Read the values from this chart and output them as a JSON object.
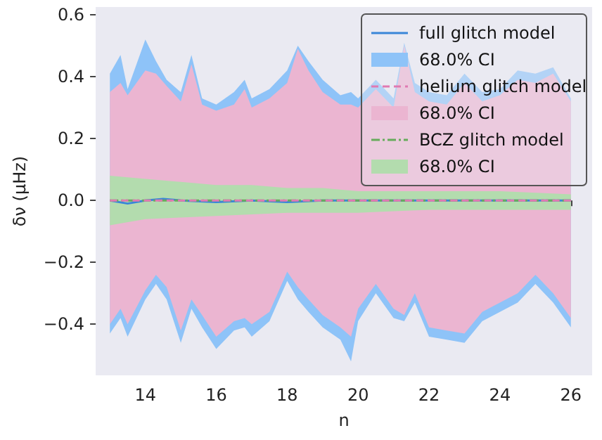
{
  "chart_data": {
    "type": "line",
    "xlabel": "n",
    "ylabel": "δν (μHz)",
    "xlim": [
      12.6,
      26.6
    ],
    "ylim": [
      -0.565,
      0.625
    ],
    "xticks": [
      14,
      16,
      18,
      20,
      22,
      24,
      26
    ],
    "yticks": [
      {
        "value": -0.4,
        "label": "−0.4"
      },
      {
        "value": -0.2,
        "label": "−0.2"
      },
      {
        "value": 0,
        "label": "0.0"
      },
      {
        "value": 0.2,
        "label": "0.2"
      },
      {
        "value": 0.4,
        "label": "0.4"
      },
      {
        "value": 0.6,
        "label": "0.6"
      }
    ],
    "grid": false,
    "legend": "top right",
    "marker": "none",
    "series": [
      {
        "name": "full glitch model",
        "type": "line",
        "color": "#3a86d8",
        "line_style": "solid",
        "x": [
          13,
          13.5,
          14,
          14.5,
          15,
          16,
          17,
          18,
          19,
          20,
          21,
          22,
          23,
          24,
          25,
          26
        ],
        "values": [
          0,
          -0.01,
          0,
          0.005,
          0,
          -0.005,
          0,
          -0.005,
          0,
          0,
          0,
          0,
          0,
          0,
          0,
          0
        ]
      },
      {
        "name": "68.0% CI",
        "type": "area",
        "color": "#8ec3f8",
        "x": [
          13,
          13.3,
          13.5,
          14,
          14.3,
          14.6,
          15,
          15.3,
          15.6,
          16,
          16.5,
          16.8,
          17,
          17.5,
          18,
          18.3,
          18.6,
          19,
          19.5,
          19.8,
          20,
          20.5,
          21,
          21.3,
          21.6,
          22,
          22.5,
          23,
          23.5,
          24,
          24.5,
          25,
          25.5,
          26
        ],
        "values": [
          null,
          null,
          null,
          null,
          null,
          null,
          null,
          null,
          null,
          null,
          null,
          null,
          null,
          null,
          null,
          null,
          null,
          null,
          null,
          null,
          null,
          null,
          null,
          null,
          null,
          null,
          null,
          null,
          null,
          null,
          null,
          null,
          null,
          null
        ],
        "upper": [
          0.41,
          0.47,
          0.36,
          0.52,
          0.45,
          0.39,
          0.35,
          0.47,
          0.33,
          0.31,
          0.35,
          0.39,
          0.33,
          0.36,
          0.42,
          0.5,
          0.45,
          0.39,
          0.34,
          0.35,
          0.33,
          0.39,
          0.33,
          0.51,
          0.38,
          0.35,
          0.34,
          0.41,
          0.35,
          0.36,
          0.42,
          0.41,
          0.43,
          0.33
        ],
        "lower": [
          -0.43,
          -0.38,
          -0.44,
          -0.32,
          -0.27,
          -0.32,
          -0.46,
          -0.35,
          -0.41,
          -0.48,
          -0.42,
          -0.41,
          -0.44,
          -0.39,
          -0.26,
          -0.32,
          -0.36,
          -0.41,
          -0.45,
          -0.52,
          -0.39,
          -0.3,
          -0.38,
          -0.39,
          -0.33,
          -0.44,
          -0.45,
          -0.46,
          -0.39,
          -0.36,
          -0.33,
          -0.27,
          -0.33,
          -0.41
        ]
      },
      {
        "name": "helium glitch model",
        "type": "line",
        "color": "#e07ab2",
        "line_style": "dashed",
        "x": [
          13,
          14,
          15,
          16,
          17,
          18,
          19,
          20,
          21,
          22,
          23,
          24,
          25,
          26
        ],
        "values": [
          0,
          0,
          0,
          0,
          0,
          0,
          0,
          0,
          0,
          0,
          0,
          0,
          0,
          0
        ]
      },
      {
        "name": "68.0% CI",
        "type": "area",
        "color": "#ebb5d1",
        "x": [
          13,
          13.3,
          13.5,
          14,
          14.3,
          14.6,
          15,
          15.3,
          15.6,
          16,
          16.5,
          16.8,
          17,
          17.5,
          18,
          18.3,
          18.6,
          19,
          19.5,
          19.8,
          20,
          20.5,
          21,
          21.3,
          21.6,
          22,
          22.5,
          23,
          23.5,
          24,
          24.5,
          25,
          25.5,
          26
        ],
        "values": [
          null,
          null,
          null,
          null,
          null,
          null,
          null,
          null,
          null,
          null,
          null,
          null,
          null,
          null,
          null,
          null,
          null,
          null,
          null,
          null,
          null,
          null,
          null,
          null,
          null,
          null,
          null,
          null,
          null,
          null,
          null,
          null,
          null,
          null
        ],
        "upper": [
          0.35,
          0.38,
          0.34,
          0.42,
          0.41,
          0.37,
          0.32,
          0.44,
          0.31,
          0.29,
          0.31,
          0.36,
          0.3,
          0.33,
          0.38,
          0.49,
          0.42,
          0.35,
          0.31,
          0.31,
          0.3,
          0.36,
          0.3,
          0.5,
          0.35,
          0.32,
          0.31,
          0.38,
          0.32,
          0.34,
          0.39,
          0.38,
          0.41,
          0.32
        ],
        "lower": [
          -0.4,
          -0.35,
          -0.4,
          -0.29,
          -0.24,
          -0.28,
          -0.42,
          -0.32,
          -0.37,
          -0.44,
          -0.39,
          -0.38,
          -0.4,
          -0.36,
          -0.23,
          -0.28,
          -0.32,
          -0.37,
          -0.41,
          -0.44,
          -0.35,
          -0.27,
          -0.35,
          -0.37,
          -0.3,
          -0.41,
          -0.42,
          -0.43,
          -0.36,
          -0.33,
          -0.3,
          -0.24,
          -0.3,
          -0.38
        ]
      },
      {
        "name": "BCZ glitch model",
        "type": "line",
        "color": "#67ab5c",
        "line_style": "dashdot",
        "x": [
          13,
          14,
          15,
          16,
          17,
          18,
          19,
          20,
          21,
          22,
          23,
          24,
          25,
          26
        ],
        "values": [
          0,
          0,
          0,
          0,
          0,
          0,
          0,
          0,
          0,
          0,
          0,
          0,
          0,
          0
        ]
      },
      {
        "name": "68.0% CI",
        "type": "area",
        "color": "#b3dcae",
        "x": [
          13,
          14,
          15,
          16,
          17,
          18,
          19,
          20,
          21,
          22,
          23,
          24,
          25,
          26
        ],
        "values": [
          null,
          null,
          null,
          null,
          null,
          null,
          null,
          null,
          null,
          null,
          null,
          null,
          null,
          null
        ],
        "upper": [
          0.08,
          0.07,
          0.06,
          0.05,
          0.05,
          0.04,
          0.04,
          0.03,
          0.03,
          0.03,
          0.03,
          0.03,
          0.025,
          0.02
        ],
        "lower": [
          -0.08,
          -0.06,
          -0.055,
          -0.05,
          -0.045,
          -0.04,
          -0.04,
          -0.04,
          -0.035,
          -0.03,
          -0.03,
          -0.03,
          -0.03,
          -0.03
        ]
      }
    ]
  }
}
